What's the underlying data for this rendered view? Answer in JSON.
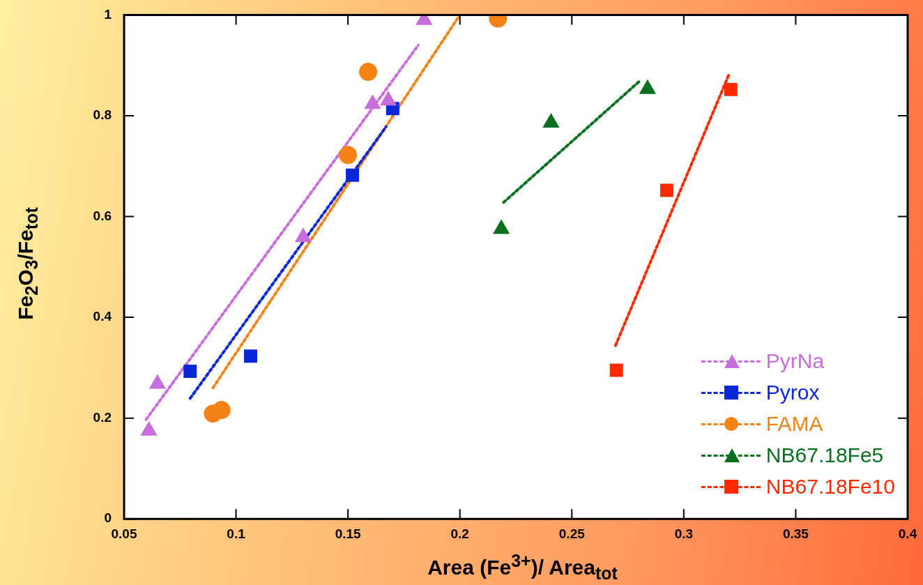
{
  "chart_data": {
    "type": "scatter",
    "xlabel": "Area  (Fe$^{3+}$)/ Area$_{tot}$",
    "ylabel": "Fe$_{2}$O$_{3}$/Fe$_{tot}$",
    "xlim": [
      0.05,
      0.4
    ],
    "xticks": [
      0.05,
      0.1,
      0.15,
      0.2,
      0.25,
      0.3,
      0.35,
      0.4
    ],
    "ylim": [
      0,
      1
    ],
    "yticks": [
      0,
      0.2,
      0.4,
      0.6,
      0.8,
      1
    ],
    "grid": false,
    "legend": "bottom right",
    "line_style": "dotted",
    "series": [
      {
        "name": "PyrNa",
        "type": "scatter",
        "marker": "triangle",
        "color": "#c86ddc",
        "x": [
          0.0611,
          0.0649,
          0.13,
          0.161,
          0.168,
          0.184
        ],
        "values": [
          0.175,
          0.268,
          0.559,
          0.823,
          0.83,
          0.99
        ]
      },
      {
        "name": "Pyrox",
        "type": "scatter",
        "marker": "square",
        "color": "#0a28d8",
        "x": [
          0.0795,
          0.1065,
          0.152,
          0.17
        ],
        "values": [
          0.293,
          0.323,
          0.682,
          0.814
        ]
      },
      {
        "name": "FAMA",
        "type": "scatter",
        "marker": "circle",
        "color": "#f58215",
        "x": [
          0.0897,
          0.0935,
          0.15,
          0.159,
          0.217
        ],
        "values": [
          0.209,
          0.216,
          0.722,
          0.887,
          0.993
        ]
      },
      {
        "name": "NB67.18Fe5",
        "type": "scatter",
        "marker": "triangle",
        "color": "#08701e",
        "x": [
          0.2185,
          0.2407,
          0.2838
        ],
        "values": [
          0.575,
          0.786,
          0.853
        ]
      },
      {
        "name": "NB67.18Fe10",
        "type": "scatter",
        "marker": "square",
        "color": "#ff2a00",
        "x": [
          0.2699,
          0.2924,
          0.321
        ],
        "values": [
          0.295,
          0.652,
          0.852
        ]
      },
      {
        "type": "line",
        "marker": "none",
        "color": "#c86ddc",
        "x": [
          0.0598,
          0.1814
        ],
        "values": [
          0.197,
          0.94
        ]
      },
      {
        "type": "line",
        "marker": "none",
        "color": "#0a28d8",
        "x": [
          0.0795,
          0.167
        ],
        "values": [
          0.239,
          0.778
        ]
      },
      {
        "type": "line",
        "marker": "none",
        "color": "#f58215",
        "x": [
          0.0897,
          0.2
        ],
        "values": [
          0.26,
          1.0
        ]
      },
      {
        "type": "line",
        "marker": "none",
        "color": "#08701e",
        "x": [
          0.2195,
          0.2806
        ],
        "values": [
          0.628,
          0.87
        ]
      },
      {
        "type": "line",
        "marker": "none",
        "color": "#ff2a00",
        "x": [
          0.2695,
          0.32
        ],
        "values": [
          0.344,
          0.88
        ]
      }
    ]
  }
}
